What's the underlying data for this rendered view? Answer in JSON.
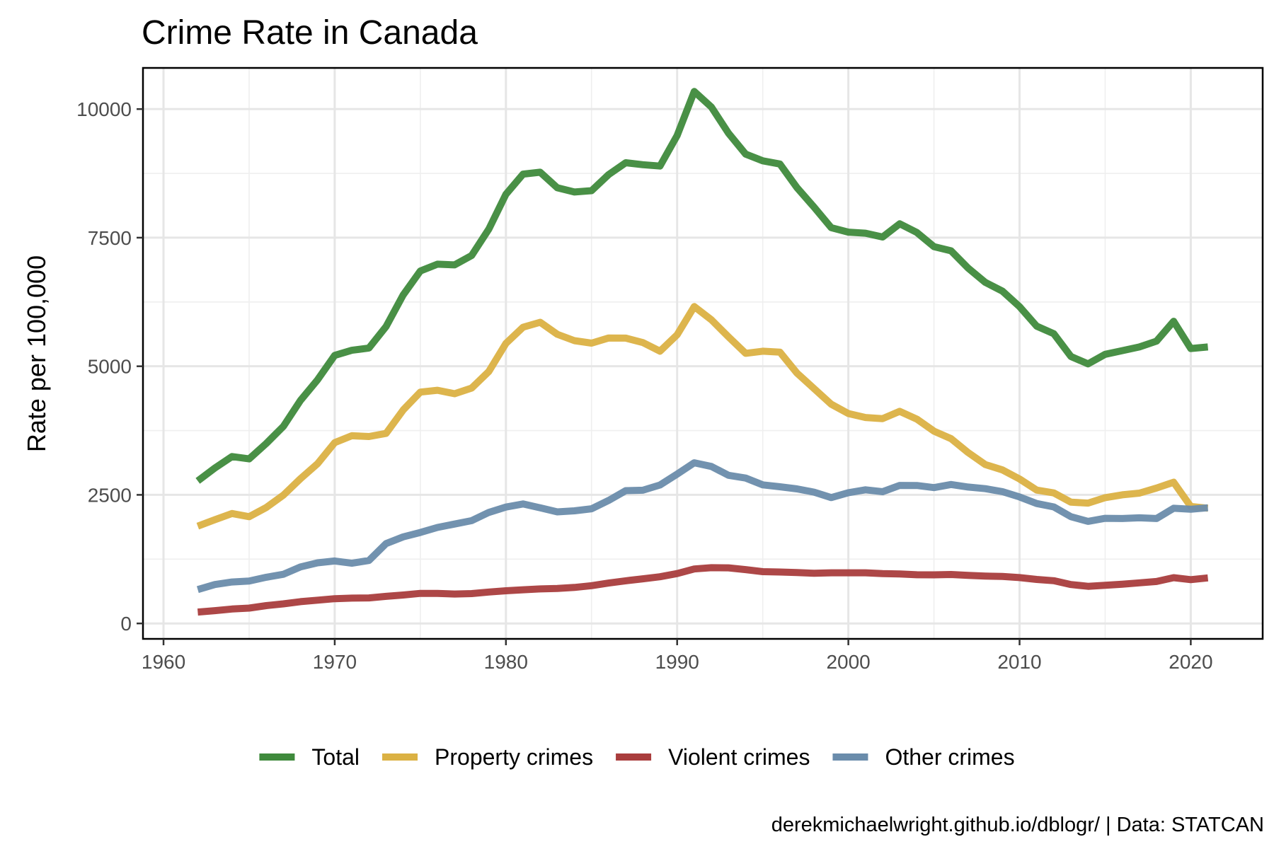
{
  "chart_data": {
    "type": "line",
    "title": "Crime Rate in Canada",
    "xlabel": "",
    "ylabel": "Rate per 100,000",
    "caption": "derekmichaelwright.github.io/dblogr/ | Data: STATCAN",
    "xlim": [
      1958.8,
      2024.2
    ],
    "ylim": [
      -300,
      10800
    ],
    "x_ticks": [
      1960,
      1970,
      1980,
      1990,
      2000,
      2010,
      2020
    ],
    "x_tick_labels": [
      "1960",
      "1970",
      "1980",
      "1990",
      "2000",
      "2010",
      "2020"
    ],
    "y_ticks": [
      0,
      2500,
      5000,
      7500,
      10000
    ],
    "y_tick_labels": [
      "0",
      "2500",
      "5000",
      "7500",
      "10000"
    ],
    "grid": true,
    "legend_position": "bottom",
    "x": [
      1962,
      1963,
      1964,
      1965,
      1966,
      1967,
      1968,
      1969,
      1970,
      1971,
      1972,
      1973,
      1974,
      1975,
      1976,
      1977,
      1978,
      1979,
      1980,
      1981,
      1982,
      1983,
      1984,
      1985,
      1986,
      1987,
      1988,
      1989,
      1990,
      1991,
      1992,
      1993,
      1994,
      1995,
      1996,
      1997,
      1998,
      1999,
      2000,
      2001,
      2002,
      2003,
      2004,
      2005,
      2006,
      2007,
      2008,
      2009,
      2010,
      2011,
      2012,
      2013,
      2014,
      2015,
      2016,
      2017,
      2018,
      2019,
      2020,
      2021
    ],
    "series": [
      {
        "name": "Total",
        "color": "#3f8a3c",
        "values": [
          2771,
          3022,
          3245,
          3199,
          3499,
          3832,
          4336,
          4737,
          5212,
          5311,
          5355,
          5773,
          6388,
          6852,
          6984,
          6971,
          7154,
          7666,
          8343,
          8736,
          8773,
          8470,
          8387,
          8413,
          8727,
          8957,
          8919,
          8892,
          9485,
          10342,
          10040,
          9531,
          9125,
          8994,
          8932,
          8473,
          8093,
          7694,
          7607,
          7587,
          7512,
          7770,
          7600,
          7325,
          7245,
          6908,
          6631,
          6461,
          6159,
          5779,
          5632,
          5190,
          5046,
          5232,
          5303,
          5375,
          5488,
          5874,
          5345,
          5375
        ]
      },
      {
        "name": "Property crimes",
        "color": "#dbb143",
        "values": [
          1891,
          2016,
          2137,
          2075,
          2254,
          2495,
          2814,
          3106,
          3516,
          3649,
          3634,
          3694,
          4151,
          4498,
          4533,
          4466,
          4576,
          4898,
          5444,
          5759,
          5855,
          5622,
          5498,
          5449,
          5550,
          5547,
          5461,
          5293,
          5612,
          6160,
          5904,
          5570,
          5251,
          5292,
          5275,
          4867,
          4565,
          4263,
          4081,
          4004,
          3982,
          4124,
          3972,
          3739,
          3593,
          3321,
          3089,
          2985,
          2809,
          2592,
          2537,
          2357,
          2339,
          2445,
          2500,
          2533,
          2632,
          2745,
          2274,
          2240
        ]
      },
      {
        "name": "Violent crimes",
        "color": "#a93d3d",
        "values": [
          221,
          249,
          281,
          299,
          347,
          381,
          423,
          453,
          481,
          492,
          497,
          526,
          553,
          585,
          584,
          572,
          580,
          610,
          636,
          654,
          671,
          679,
          700,
          735,
          785,
          829,
          868,
          908,
          970,
          1059,
          1084,
          1081,
          1047,
          1007,
          1000,
          990,
          975,
          984,
          984,
          985,
          969,
          963,
          946,
          945,
          951,
          935,
          922,
          913,
          891,
          856,
          830,
          757,
          722,
          743,
          763,
          789,
          816,
          890,
          851,
          886
        ]
      },
      {
        "name": "Other crimes",
        "color": "#6a8cab",
        "values": [
          659,
          757,
          806,
          825,
          898,
          956,
          1099,
          1178,
          1215,
          1170,
          1224,
          1553,
          1684,
          1769,
          1867,
          1933,
          1998,
          2158,
          2263,
          2323,
          2247,
          2169,
          2189,
          2229,
          2392,
          2581,
          2590,
          2691,
          2903,
          3123,
          3052,
          2880,
          2827,
          2695,
          2657,
          2616,
          2553,
          2447,
          2542,
          2598,
          2561,
          2683,
          2682,
          2641,
          2701,
          2652,
          2620,
          2563,
          2459,
          2331,
          2265,
          2076,
          1985,
          2044,
          2040,
          2053,
          2040,
          2239,
          2220,
          2249
        ]
      }
    ]
  }
}
